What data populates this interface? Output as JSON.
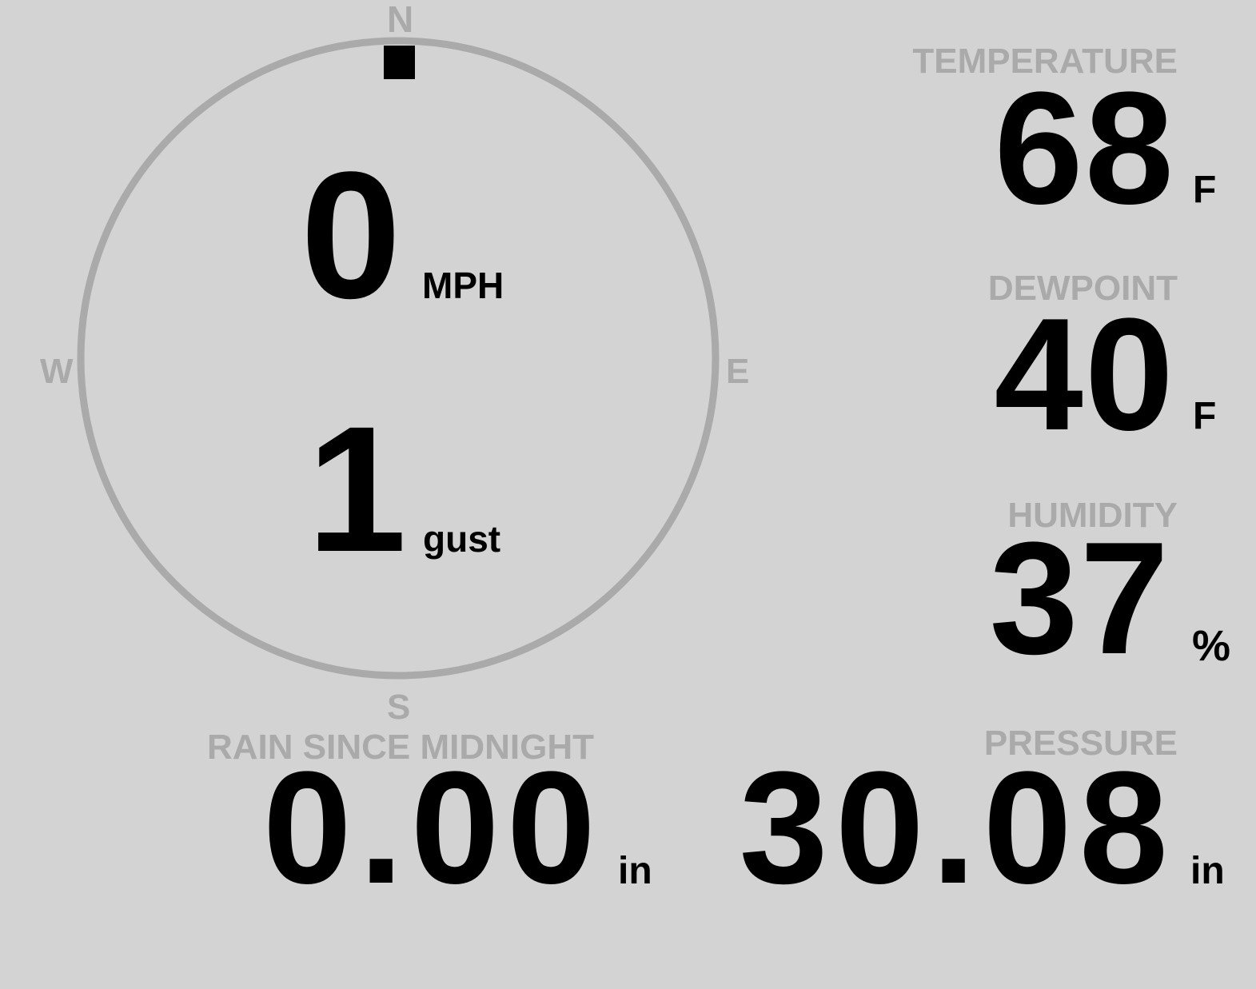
{
  "colors": {
    "background": "#d3d3d3",
    "label": "#aaaaaa",
    "value": "#000000"
  },
  "compass": {
    "north": "N",
    "east": "E",
    "south": "S",
    "west": "W",
    "direction_deg": 0,
    "needle_icon": "wind-direction-marker"
  },
  "wind": {
    "speed": "0",
    "speed_unit": "MPH",
    "gust": "1",
    "gust_unit": "gust"
  },
  "temperature": {
    "label": "TEMPERATURE",
    "value": "68",
    "unit": "F"
  },
  "dewpoint": {
    "label": "DEWPOINT",
    "value": "40",
    "unit": "F"
  },
  "humidity": {
    "label": "HUMIDITY",
    "value": "37",
    "unit": "%"
  },
  "rain": {
    "label": "RAIN SINCE MIDNIGHT",
    "value": "0.00",
    "unit": "in"
  },
  "pressure": {
    "label": "PRESSURE",
    "value": "30.08",
    "unit": "in"
  }
}
